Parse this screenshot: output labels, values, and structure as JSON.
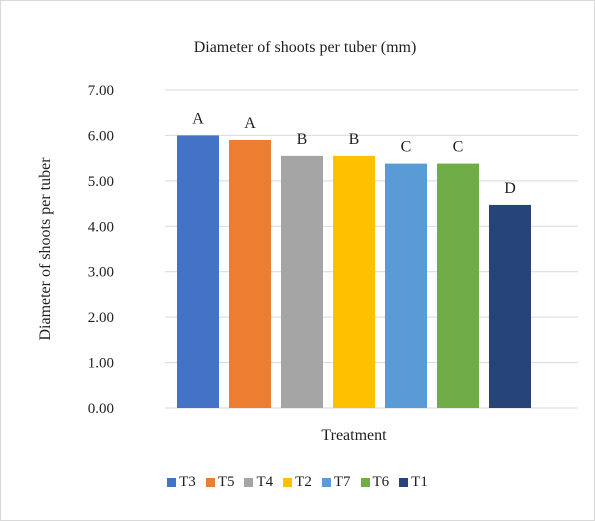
{
  "chart_data": {
    "type": "bar",
    "title": "Diameter of shoots per tuber (mm)",
    "xlabel": "Treatment",
    "ylabel": "Diameter of shoots per tuber",
    "ylim": [
      0,
      7
    ],
    "yticks": [
      "0.00",
      "1.00",
      "2.00",
      "3.00",
      "4.00",
      "5.00",
      "6.00",
      "7.00"
    ],
    "grid": true,
    "legend_position": "bottom",
    "series": [
      {
        "name": "T3",
        "value": 6.0,
        "label": "A",
        "color": "#4472c4"
      },
      {
        "name": "T5",
        "value": 5.9,
        "label": "A",
        "color": "#ed7d31"
      },
      {
        "name": "T4",
        "value": 5.55,
        "label": "B",
        "color": "#a5a5a5"
      },
      {
        "name": "T2",
        "value": 5.55,
        "label": "B",
        "color": "#ffc000"
      },
      {
        "name": "T7",
        "value": 5.38,
        "label": "C",
        "color": "#5b9bd5"
      },
      {
        "name": "T6",
        "value": 5.38,
        "label": "C",
        "color": "#70ad47"
      },
      {
        "name": "T1",
        "value": 4.47,
        "label": "D",
        "color": "#264478"
      }
    ]
  }
}
